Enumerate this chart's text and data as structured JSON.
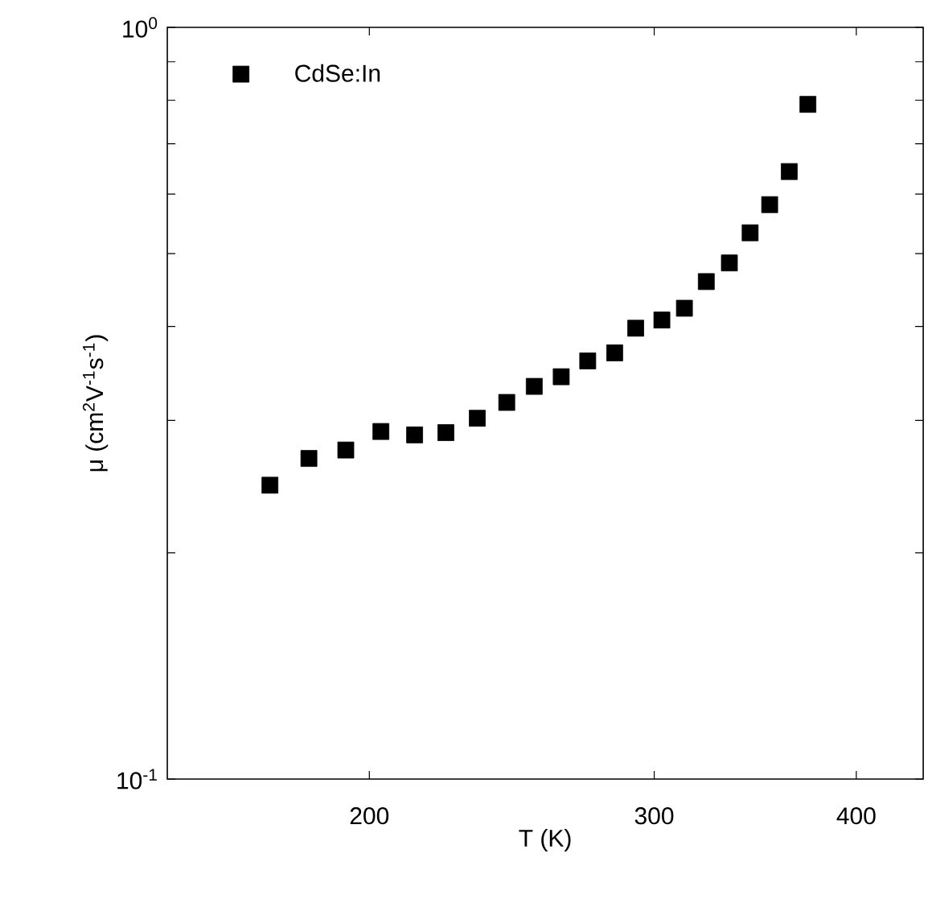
{
  "chart_data": {
    "type": "scatter",
    "xlabel": "T (K)",
    "ylabel": "μ (cm$^{2}$V$^{-1}$s$^{-1}$)",
    "log": "xy",
    "xlim": [
      150,
      440
    ],
    "ylim": [
      0.1,
      1
    ],
    "xticks": [
      200,
      300,
      400
    ],
    "yticks": [
      {
        "value": 0.1,
        "label": "10$^{-1}$"
      },
      {
        "value": 0.2,
        "label": null
      },
      {
        "value": 0.3,
        "label": null
      },
      {
        "value": 0.4,
        "label": null
      },
      {
        "value": 0.5,
        "label": null
      },
      {
        "value": 0.6,
        "label": null
      },
      {
        "value": 0.7,
        "label": null
      },
      {
        "value": 0.8,
        "label": null
      },
      {
        "value": 0.9,
        "label": null
      },
      {
        "value": 1,
        "label": "10$^{0}$"
      }
    ],
    "marker": "square",
    "legend": "top left",
    "grid": false,
    "series": [
      {
        "name": "CdSe:In",
        "color": "#000000",
        "x": [
          173.6,
          183.5,
          193.4,
          203.3,
          213.3,
          223.0,
          233.2,
          243.2,
          252.9,
          262.8,
          272.9,
          283.6,
          292.2,
          303.3,
          313.2,
          323.1,
          333.9,
          343.9,
          353.6,
          363.6,
          373.4
        ],
        "values": [
          0.246,
          0.267,
          0.274,
          0.29,
          0.287,
          0.289,
          0.302,
          0.317,
          0.333,
          0.343,
          0.36,
          0.369,
          0.398,
          0.408,
          0.423,
          0.459,
          0.486,
          0.533,
          0.581,
          0.643,
          0.79
        ]
      }
    ]
  }
}
